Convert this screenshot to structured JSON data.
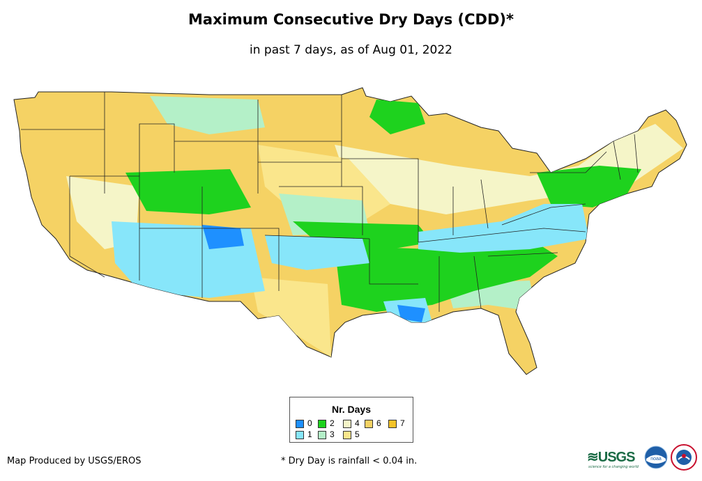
{
  "header": {
    "title": "Maximum Consecutive Dry Days (CDD)*",
    "subtitle": "in past 7 days, as of Aug 01, 2022"
  },
  "legend": {
    "title": "Nr. Days",
    "items": [
      {
        "label": "0",
        "color": "#1e90ff"
      },
      {
        "label": "1",
        "color": "#87e6fa"
      },
      {
        "label": "2",
        "color": "#1ed21e"
      },
      {
        "label": "3",
        "color": "#b4f0c8"
      },
      {
        "label": "4",
        "color": "#f5f5c8"
      },
      {
        "label": "5",
        "color": "#fae68c"
      },
      {
        "label": "6",
        "color": "#f5d264"
      },
      {
        "label": "7",
        "color": "#f5c328"
      }
    ]
  },
  "footer": {
    "credit": "Map Produced by USGS/EROS",
    "footnote": "* Dry Day is rainfall < 0.04 in."
  },
  "logos": {
    "usgs_text": "≋USGS",
    "usgs_tagline": "science for a changing world",
    "noaa_text": "noaa",
    "nws_icon": "nws-icon"
  }
}
